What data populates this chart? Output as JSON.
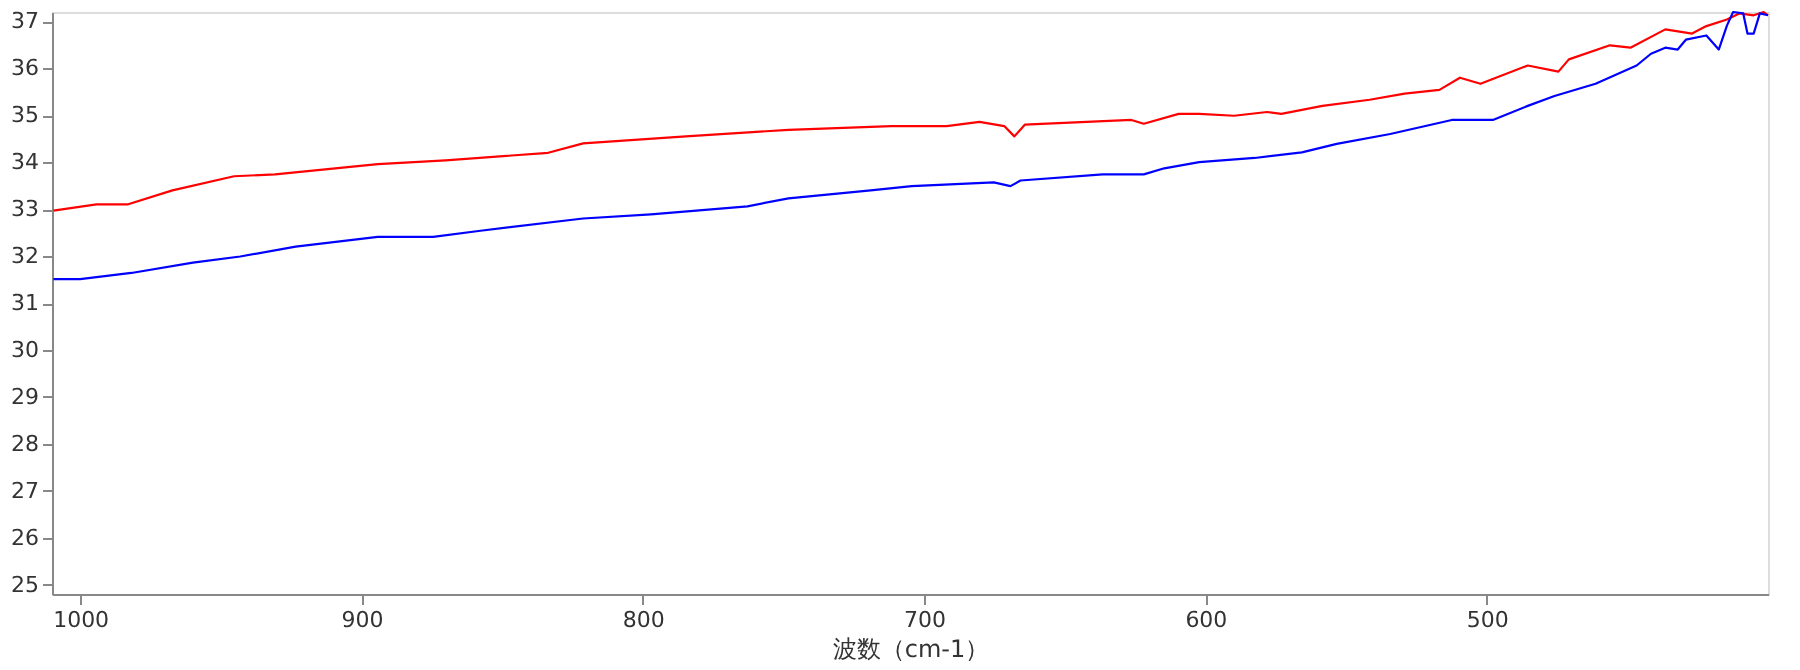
{
  "chart_data": {
    "type": "line",
    "xlabel": "波数（cm-1）",
    "xlim": [
      1010,
      400
    ],
    "xticks": [
      1000,
      900,
      800,
      700,
      600,
      500
    ],
    "ylim": [
      24.8,
      37.2
    ],
    "yticks": [
      25,
      26,
      27,
      28,
      29,
      30,
      31,
      32,
      33,
      34,
      35,
      36,
      37
    ],
    "grid": false,
    "line_style": "solid",
    "marker": "none",
    "series": [
      {
        "color": "#ff0000",
        "x": [
          1009.5,
          994.2,
          983.2,
          967.2,
          945.3,
          930.7,
          894.2,
          870.1,
          833.6,
          821.2,
          784.7,
          748.2,
          711.7,
          692.0,
          680.3,
          671.5,
          667.9,
          664.2,
          626.3,
          621.9,
          609.5,
          602.2,
          589.8,
          578.1,
          573.0,
          558.4,
          541.6,
          529.2,
          516.8,
          509.5,
          502.2,
          485.4,
          474.5,
          470.8,
          456.2,
          448.9,
          436.5,
          427.0,
          421.9,
          414.6,
          410.2,
          405.1,
          401.5,
          400.0
        ],
        "values": [
          32.97,
          33.1,
          33.1,
          33.4,
          33.7,
          33.74,
          33.96,
          34.04,
          34.2,
          34.4,
          34.55,
          34.69,
          34.77,
          34.77,
          34.86,
          34.77,
          34.55,
          34.8,
          34.9,
          34.82,
          35.03,
          35.03,
          34.99,
          35.07,
          35.03,
          35.2,
          35.33,
          35.46,
          35.54,
          35.8,
          35.67,
          36.06,
          35.93,
          36.19,
          36.49,
          36.44,
          36.83,
          36.74,
          36.9,
          37.04,
          37.17,
          37.13,
          37.2,
          37.13
        ]
      },
      {
        "color": "#0000ff",
        "x": [
          1009.5,
          1000.0,
          981.8,
          959.9,
          943.1,
          923.4,
          894.2,
          874.5,
          857.7,
          821.2,
          797.1,
          762.8,
          748.2,
          719.0,
          704.4,
          675.2,
          669.3,
          665.7,
          636.5,
          621.9,
          614.6,
          602.2,
          582.5,
          565.7,
          553.3,
          534.3,
          512.4,
          497.8,
          485.4,
          475.9,
          461.3,
          446.7,
          441.6,
          436.5,
          432.1,
          429.2,
          421.9,
          417.5,
          414.6,
          412.4,
          408.8,
          407.3,
          405.1,
          402.9,
          400.0
        ],
        "values": [
          31.51,
          31.51,
          31.64,
          31.86,
          31.99,
          32.2,
          32.41,
          32.41,
          32.54,
          32.8,
          32.89,
          33.06,
          33.23,
          33.4,
          33.49,
          33.57,
          33.49,
          33.61,
          33.74,
          33.74,
          33.87,
          34.0,
          34.09,
          34.21,
          34.39,
          34.6,
          34.9,
          34.9,
          35.2,
          35.41,
          35.67,
          36.06,
          36.31,
          36.44,
          36.4,
          36.61,
          36.7,
          36.4,
          36.91,
          37.2,
          37.17,
          36.74,
          36.74,
          37.17,
          37.13
        ]
      }
    ]
  }
}
